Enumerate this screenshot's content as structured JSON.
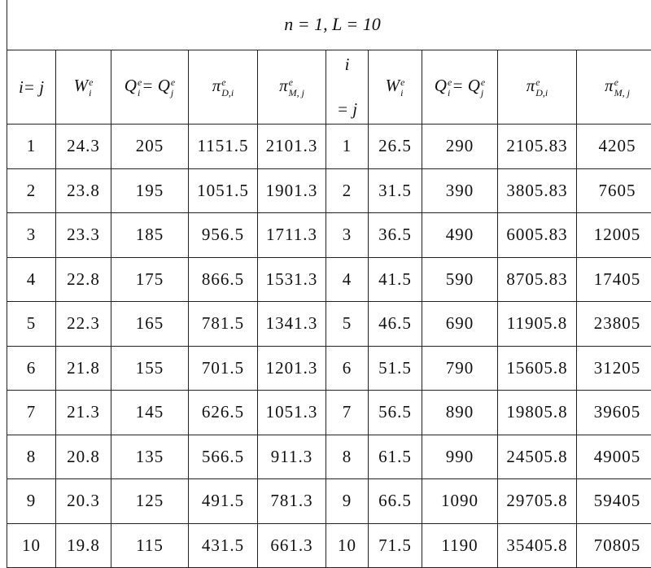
{
  "title": "n = 1, L = 10",
  "headers": [
    {
      "base": "i= j",
      "sup": "",
      "sub": ""
    },
    {
      "base": "W",
      "sup": "e",
      "sub": "i"
    },
    {
      "base": "Q",
      "sup": "e",
      "sub": "i",
      "rest": "= Q",
      "sup2": "e",
      "sub2": "j"
    },
    {
      "base": "π",
      "sup": "e",
      "sub": "D,i"
    },
    {
      "base": "π",
      "sup": "e",
      "sub": "M, j"
    },
    {
      "line1": "i",
      "line2": "= j"
    },
    {
      "base": "W",
      "sup": "e",
      "sub": "i"
    },
    {
      "base": "Q",
      "sup": "e",
      "sub": "i",
      "rest": "= Q",
      "sup2": "e",
      "sub2": "j"
    },
    {
      "base": "π",
      "sup": "e",
      "sub": "D,i"
    },
    {
      "base": "π",
      "sup": "e",
      "sub": "M, j"
    }
  ],
  "rows": [
    [
      "1",
      "24.3",
      "205",
      "1151.5",
      "2101.3",
      "1",
      "26.5",
      "290",
      "2105.83",
      "4205"
    ],
    [
      "2",
      "23.8",
      "195",
      "1051.5",
      "1901.3",
      "2",
      "31.5",
      "390",
      "3805.83",
      "7605"
    ],
    [
      "3",
      "23.3",
      "185",
      "956.5",
      "1711.3",
      "3",
      "36.5",
      "490",
      "6005.83",
      "12005"
    ],
    [
      "4",
      "22.8",
      "175",
      "866.5",
      "1531.3",
      "4",
      "41.5",
      "590",
      "8705.83",
      "17405"
    ],
    [
      "5",
      "22.3",
      "165",
      "781.5",
      "1341.3",
      "5",
      "46.5",
      "690",
      "11905.8",
      "23805"
    ],
    [
      "6",
      "21.8",
      "155",
      "701.5",
      "1201.3",
      "6",
      "51.5",
      "790",
      "15605.8",
      "31205"
    ],
    [
      "7",
      "21.3",
      "145",
      "626.5",
      "1051.3",
      "7",
      "56.5",
      "890",
      "19805.8",
      "39605"
    ],
    [
      "8",
      "20.8",
      "135",
      "566.5",
      "911.3",
      "8",
      "61.5",
      "990",
      "24505.8",
      "49005"
    ],
    [
      "9",
      "20.3",
      "125",
      "491.5",
      "781.3",
      "9",
      "66.5",
      "1090",
      "29705.8",
      "59405"
    ],
    [
      "10",
      "19.8",
      "115",
      "431.5",
      "661.3",
      "10",
      "71.5",
      "1190",
      "35405.8",
      "70805"
    ]
  ]
}
